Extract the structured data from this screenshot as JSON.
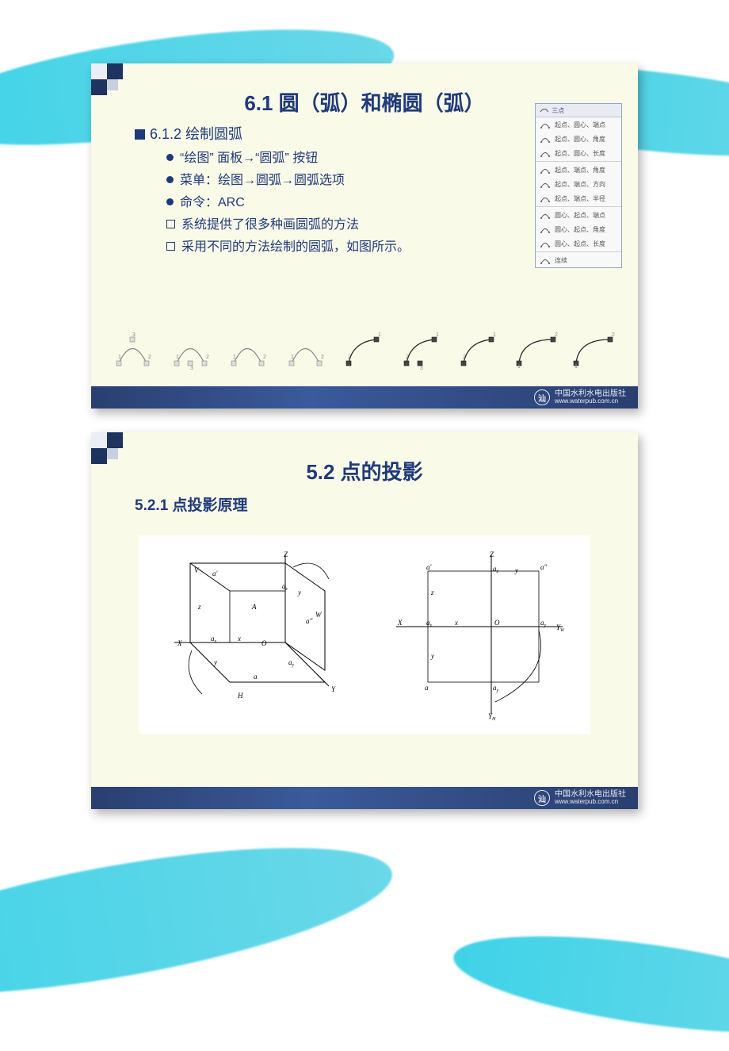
{
  "page_bg": "#ffffff",
  "wave_color": "#3fd3e8",
  "slide_bg": "#fafae8",
  "accent_navy": "#1f335f",
  "text_color": "#1f3a7a",
  "slide1": {
    "title": "6.1   圆（弧）和椭圆（弧）",
    "subtitle_marker": "■",
    "subtitle": "6.1.2   绘制圆弧",
    "bullets_dot": [
      "“绘图” 面板→“圆弧” 按钮",
      "菜单：绘图→圆弧→圆弧选项",
      "命令：ARC"
    ],
    "bullets_box": [
      "系统提供了很多种画圆弧的方法",
      "采用不同的方法绘制的圆弧，如图所示。"
    ],
    "arc_menu": {
      "header": "三点",
      "items": [
        "起点、圆心、端点",
        "起点、圆心、角度",
        "起点、圆心、长度",
        "起点、端点、角度",
        "起点、端点、方向",
        "起点、端点、半径",
        "圆心、起点、端点",
        "圆心、起点、角度",
        "圆心、起点、长度",
        "连续"
      ],
      "separators_after": [
        2,
        5,
        8
      ]
    },
    "arc_examples": {
      "count": 9,
      "stroke_light": "#888888",
      "stroke_dark": "#222222",
      "marker_fill": "#dddddd",
      "marker_dark": "#444444",
      "label_color": "#888888"
    }
  },
  "slide2": {
    "title": "5.2  点的投影",
    "subtitle": "5.2.1  点投影原理",
    "diagrams": {
      "stroke": "#000000",
      "bg": "#ffffff",
      "label_fontsize": 9,
      "left_labels": [
        "V",
        "W",
        "X",
        "Y",
        "Z",
        "H",
        "A",
        "O",
        "a'",
        "a''",
        "a",
        "a_x",
        "a_y",
        "a_z",
        "x",
        "y",
        "z"
      ],
      "right_labels": [
        "X",
        "Y_W",
        "Y_H",
        "Z",
        "O",
        "a'",
        "a''",
        "a",
        "a_x",
        "a_y",
        "a_z",
        "x",
        "y",
        "z"
      ]
    }
  },
  "footer": {
    "logo_text": "汕",
    "line1": "中国水利水电出版社",
    "line2": "www.waterpub.com.cn",
    "bg_gradient": [
      "#2a3f70",
      "#3a5a9a",
      "#2a3f70"
    ],
    "fg": "#e8ebf5"
  }
}
